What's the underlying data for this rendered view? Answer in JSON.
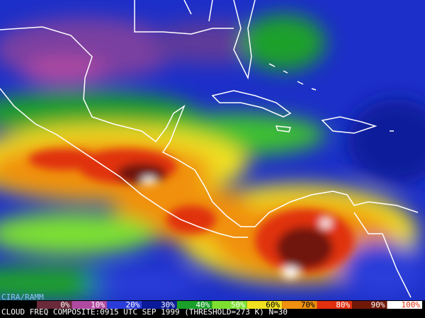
{
  "credit": "CIRA/RAMM",
  "legend": [
    {
      "label": "0%",
      "color": "#6b2a3a"
    },
    {
      "label": "10%",
      "color": "#b04aa0"
    },
    {
      "label": "20%",
      "color": "#2a3cd8"
    },
    {
      "label": "30%",
      "color": "#0a1a9a"
    },
    {
      "label": "40%",
      "color": "#1aa02a"
    },
    {
      "label": "50%",
      "color": "#7de030"
    },
    {
      "label": "60%",
      "color": "#f0e020"
    },
    {
      "label": "70%",
      "color": "#f09010"
    },
    {
      "label": "80%",
      "color": "#e03010"
    },
    {
      "label": "90%",
      "color": "#701808"
    },
    {
      "label": "100%",
      "color": "#ffffff"
    }
  ],
  "caption": "CLOUD FREQ COMPOSITE:0915 UTC SEP 1999 (THRESHOLD=273 K) N=30"
}
